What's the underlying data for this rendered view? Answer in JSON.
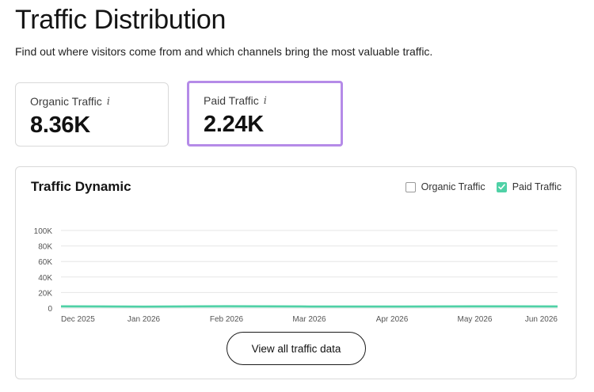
{
  "header": {
    "title": "Traffic Distribution",
    "subtitle": "Find out where visitors come from and which channels bring the most valuable traffic."
  },
  "cards": [
    {
      "label": "Organic Traffic",
      "value": "8.36K",
      "info_icon": "info-icon"
    },
    {
      "label": "Paid Traffic",
      "value": "2.24K",
      "info_icon": "info-icon",
      "highlight_color": "#b58be8"
    }
  ],
  "panel": {
    "title": "Traffic Dynamic",
    "legend": [
      {
        "label": "Organic Traffic",
        "checked": false
      },
      {
        "label": "Paid Traffic",
        "checked": true,
        "color": "#4fd1a6"
      }
    ],
    "button_label": "View all traffic data"
  },
  "chart_data": {
    "type": "area",
    "title": "Traffic Dynamic",
    "x_ticks": [
      "Dec 2025",
      "Jan 2026",
      "Feb 2026",
      "Mar 2026",
      "Apr 2026",
      "May 2026",
      "Jun 2026"
    ],
    "y_ticks": [
      "100K",
      "80K",
      "60K",
      "40K",
      "20K",
      "0"
    ],
    "ylim": [
      0,
      100000
    ],
    "grid": true,
    "legend_position": "top-right",
    "series": [
      {
        "name": "Paid Traffic",
        "color": "#4fd1a6",
        "x": [
          "Dec 2025",
          "Jan 2026",
          "Feb 2026",
          "Mar 2026",
          "Apr 2026",
          "May 2026",
          "Jun 2026"
        ],
        "values": [
          2300,
          1900,
          2400,
          2100,
          2000,
          2300,
          2200
        ]
      }
    ]
  }
}
